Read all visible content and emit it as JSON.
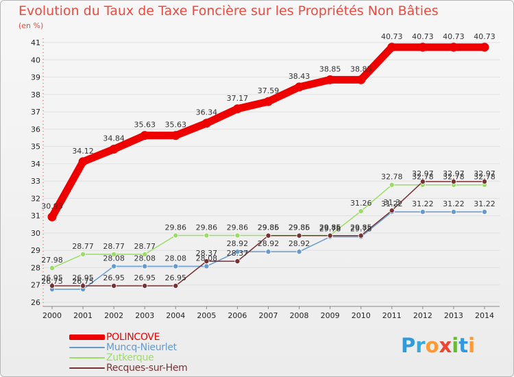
{
  "title": "Evolution du Taux de Taxe Foncière sur les Propriétés Non Bâties",
  "unit": "(en %)",
  "logo_text": "Proxiti",
  "chart_data": {
    "type": "line",
    "title": "Evolution du Taux de Taxe Foncière sur les Propriétés Non Bâties",
    "ylabel": "(en %)",
    "xlabel": "",
    "ylim": [
      26,
      41
    ],
    "x": [
      "2000",
      "2001",
      "2002",
      "2003",
      "2004",
      "2005",
      "2006",
      "2007",
      "2008",
      "2009",
      "2010",
      "2011",
      "2012",
      "2013",
      "2014"
    ],
    "yticks": [
      "26",
      "27",
      "28",
      "29",
      "30",
      "31",
      "32",
      "33",
      "34",
      "35",
      "36",
      "37",
      "38",
      "39",
      "40",
      "41"
    ],
    "series": [
      {
        "name": "POLINCOVE",
        "color": "#ee0000",
        "values": [
          30.93,
          34.12,
          34.84,
          35.63,
          35.63,
          36.34,
          37.17,
          37.59,
          38.43,
          38.85,
          38.85,
          40.73,
          40.73,
          40.73,
          40.73
        ],
        "labels": [
          "30.93",
          "34.12",
          "34.84",
          "35.63",
          "35.63",
          "36.34",
          "37.17",
          "37.59",
          "38.43",
          "38.85",
          "38.85",
          "40.73",
          "40.73",
          "40.73",
          "40.73"
        ]
      },
      {
        "name": "Muncq-Nieurlet",
        "color": "#6699cc",
        "values": [
          26.75,
          26.75,
          28.08,
          28.08,
          28.08,
          28.08,
          28.92,
          28.92,
          28.92,
          29.78,
          29.78,
          31.22,
          31.22,
          31.22,
          31.22
        ],
        "labels": [
          "26.75",
          "26.75",
          "28.08",
          "28.08",
          "28.08",
          "28.08",
          "28.92",
          "28.92",
          "28.92",
          "29.78",
          "29.78",
          "31.22",
          "31.22",
          "31.22",
          "31.22"
        ]
      },
      {
        "name": "Zutkerque",
        "color": "#99dd66",
        "values": [
          27.98,
          28.77,
          28.77,
          28.77,
          29.86,
          29.86,
          29.86,
          29.86,
          29.86,
          29.86,
          31.26,
          32.78,
          32.78,
          32.78,
          32.78
        ],
        "labels": [
          "27.98",
          "28.77",
          "28.77",
          "28.77",
          "29.86",
          "29.86",
          "29.86",
          "29.86",
          "29.86",
          "29.86",
          "31.26",
          "32.78",
          "32.78",
          "32.78",
          "32.78"
        ]
      },
      {
        "name": "Recques-sur-Hem",
        "color": "#773333",
        "values": [
          26.95,
          26.95,
          26.95,
          26.95,
          26.95,
          28.37,
          28.37,
          29.85,
          29.85,
          29.85,
          29.85,
          31.3,
          32.97,
          32.97,
          32.97
        ],
        "labels": [
          "26.95",
          "26.95",
          "26.95",
          "26.95",
          "26.95",
          "28.37",
          "28.37",
          "29.85",
          "29.85",
          "29.85",
          "29.85",
          "31.3",
          "32.97",
          "32.97",
          "32.97"
        ]
      }
    ]
  }
}
